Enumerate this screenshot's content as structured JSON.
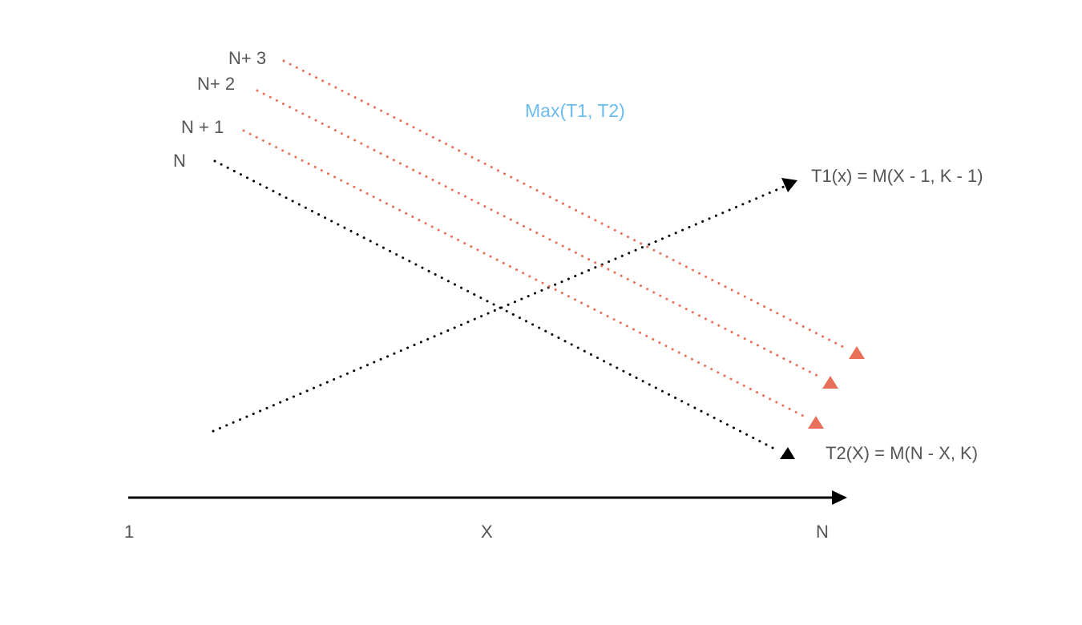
{
  "colors": {
    "black": "#000000",
    "orange": "#e8705a",
    "blue": "#6cbcf0",
    "text": "#555555"
  },
  "labels": {
    "n": "N",
    "n_plus_1": "N + 1",
    "n_plus_2": "N+ 2",
    "n_plus_3": "N+ 3",
    "max": "Max(T1, T2)",
    "t1": "T1(x) = M(X - 1, K - 1)",
    "t2": "T2(X) = M(N - X, K)"
  },
  "axis": {
    "start_label": "1",
    "mid_label": "X",
    "end_label": "N"
  }
}
